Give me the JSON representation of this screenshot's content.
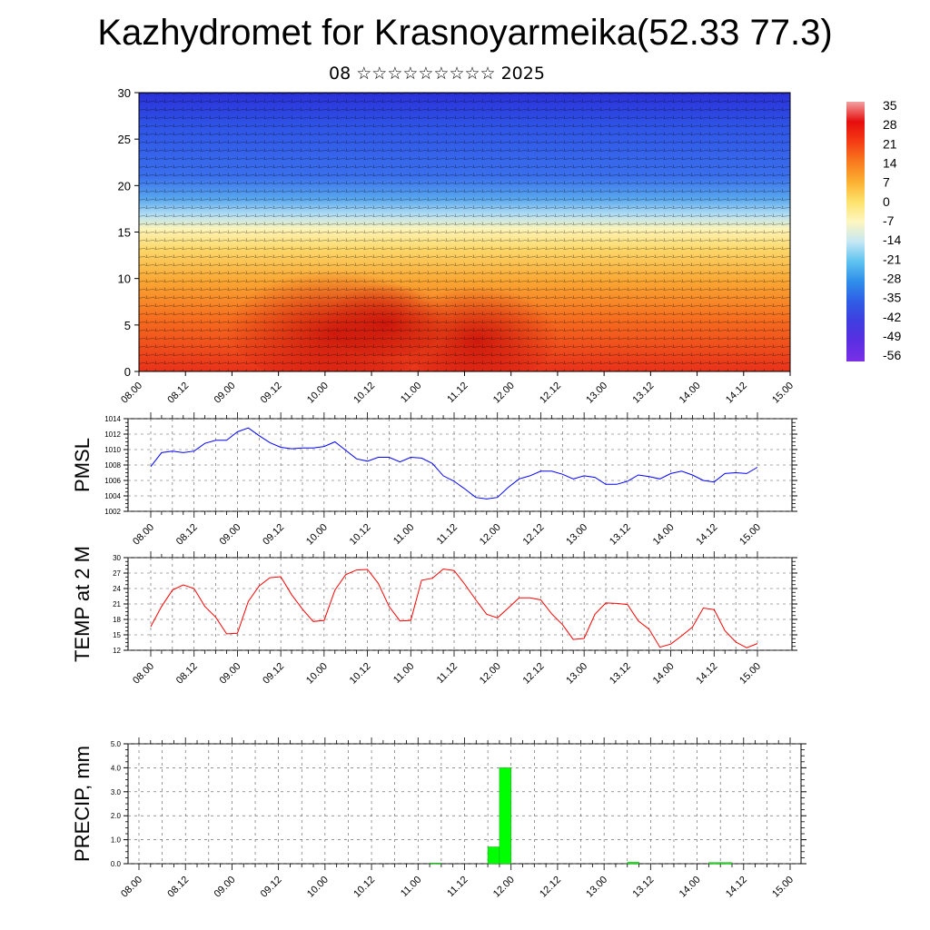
{
  "title": "Kazhydromet for Krasnoyarmeika(52.33 77.3)",
  "subtitle": "08 ☆☆☆☆☆☆☆☆☆ 2025",
  "time_labels": [
    "08.00",
    "08.12",
    "09.00",
    "09.12",
    "10.00",
    "10.12",
    "11.00",
    "11.12",
    "12.00",
    "12.12",
    "13.00",
    "13.12",
    "14.00",
    "14.12",
    "15.00"
  ],
  "colorbar": {
    "labels": [
      "35",
      "28",
      "21",
      "14",
      "7",
      "0",
      "-7",
      "-14",
      "-21",
      "-28",
      "-35",
      "-42",
      "-49",
      "-56"
    ],
    "colors": [
      "#f2a0a0",
      "#e60e0e",
      "#f53c14",
      "#f87a1e",
      "#fbb032",
      "#fde26a",
      "#fdf6c0",
      "#c6e8f4",
      "#5ec3ef",
      "#2f8eea",
      "#2f5de6",
      "#3f3ddf",
      "#5a2fe2",
      "#7b2fe6"
    ]
  },
  "chart_data": [
    {
      "type": "heatmap",
      "ylim": [
        0,
        30
      ],
      "y_ticks": [
        "0",
        "5",
        "10",
        "15",
        "20",
        "25",
        "30"
      ],
      "x_ticks": [
        "08.00",
        "08.12",
        "09.00",
        "09.12",
        "10.00",
        "10.12",
        "11.00",
        "11.12",
        "12.00",
        "12.12",
        "13.00",
        "13.12",
        "14.00",
        "14.12",
        "15.00"
      ],
      "x_range": [
        "08.00",
        "15.00"
      ],
      "z_range": [
        -56,
        35
      ],
      "colorbar_labels": [
        "35",
        "28",
        "21",
        "14",
        "7",
        "0",
        "-7",
        "-14",
        "-21",
        "-28",
        "-35",
        "-42",
        "-49",
        "-56"
      ],
      "overlay": "wind barbs"
    },
    {
      "type": "line",
      "ylabel": "PMSL",
      "ylim": [
        1002,
        1014
      ],
      "y_ticks": [
        "1002",
        "1004",
        "1006",
        "1008",
        "1010",
        "1012",
        "1014"
      ],
      "x_ticks": [
        "08.00",
        "08.12",
        "09.00",
        "09.12",
        "10.00",
        "10.12",
        "11.00",
        "11.12",
        "12.00",
        "12.12",
        "13.00",
        "13.12",
        "14.00",
        "14.12",
        "15.00"
      ],
      "series_color": "#0000ff",
      "values": [
        1007.8,
        1009.6,
        1009.8,
        1009.6,
        1009.8,
        1010.8,
        1011.2,
        1011.2,
        1012.3,
        1012.8,
        1011.8,
        1010.9,
        1010.3,
        1010.1,
        1010.2,
        1010.2,
        1010.4,
        1011.0,
        1009.9,
        1008.8,
        1008.5,
        1009.0,
        1009.0,
        1008.4,
        1009.0,
        1008.9,
        1008.2,
        1006.6,
        1005.9,
        1004.9,
        1003.8,
        1003.6,
        1003.8,
        1005.1,
        1006.2,
        1006.6,
        1007.2,
        1007.2,
        1006.8,
        1006.2,
        1006.6,
        1006.4,
        1005.5,
        1005.5,
        1005.9,
        1006.7,
        1006.5,
        1006.2,
        1006.9,
        1007.2,
        1006.7,
        1006.0,
        1005.8,
        1006.9,
        1007.0,
        1006.9,
        1007.7
      ]
    },
    {
      "type": "line",
      "ylabel": "TEMP at 2 M",
      "ylim": [
        12,
        30
      ],
      "y_ticks": [
        "12",
        "15",
        "18",
        "21",
        "24",
        "27",
        "30"
      ],
      "x_ticks": [
        "08.00",
        "08.12",
        "09.00",
        "09.12",
        "10.00",
        "10.12",
        "11.00",
        "11.12",
        "12.00",
        "12.12",
        "13.00",
        "13.12",
        "14.00",
        "14.12",
        "15.00"
      ],
      "series_color": "#ff0000",
      "values": [
        16.6,
        20.5,
        23.7,
        24.7,
        24.0,
        20.5,
        18.4,
        15.2,
        15.3,
        21.5,
        24.5,
        26.1,
        26.3,
        22.8,
        20.0,
        17.6,
        17.8,
        23.7,
        26.7,
        27.6,
        27.7,
        25.0,
        20.5,
        17.7,
        17.8,
        25.6,
        26.0,
        27.8,
        27.5,
        24.8,
        21.8,
        19.0,
        18.3,
        20.2,
        22.2,
        22.2,
        21.8,
        19.1,
        17.0,
        14.1,
        14.3,
        19.0,
        21.2,
        21.1,
        20.9,
        17.7,
        16.1,
        12.6,
        13.2,
        14.8,
        16.5,
        20.2,
        19.9,
        15.8,
        13.6,
        12.5,
        13.3
      ]
    },
    {
      "type": "bar",
      "ylabel": "PRECIP, mm",
      "ylim": [
        0.0,
        5.0
      ],
      "y_ticks": [
        "0.0",
        "1.0",
        "2.0",
        "3.0",
        "4.0",
        "5.0"
      ],
      "x_ticks": [
        "08.00",
        "08.12",
        "09.00",
        "09.12",
        "10.00",
        "10.12",
        "11.00",
        "11.12",
        "12.00",
        "12.12",
        "13.00",
        "13.12",
        "14.00",
        "14.12",
        "15.00"
      ],
      "bar_color": "#00ff00",
      "bars": [
        {
          "x_index": 26,
          "value": 0.03
        },
        {
          "x_index": 31,
          "value": 0.7
        },
        {
          "x_index": 32,
          "value": 4.0
        },
        {
          "x_index": 43,
          "value": 0.06
        },
        {
          "x_index": 50,
          "value": 0.05
        },
        {
          "x_index": 51,
          "value": 0.05
        }
      ]
    }
  ]
}
